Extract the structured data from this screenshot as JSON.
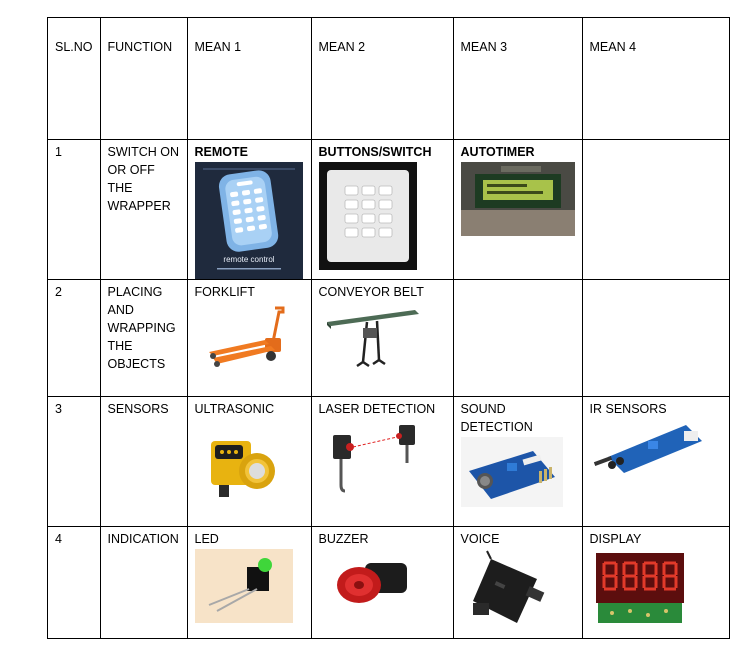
{
  "headers": [
    "SL.NO",
    "FUNCTION",
    "MEAN 1",
    "MEAN 2",
    "MEAN 3",
    "MEAN 4"
  ],
  "rows": [
    {
      "sl": "1",
      "function": "SWITCH ON OR OFF THE WRAPPER",
      "means": [
        {
          "label": "REMOTE",
          "bold": true,
          "icon": "remote-control-book-cover"
        },
        {
          "label": "BUTTONS/SWITCH",
          "bold": true,
          "icon": "keypad-switch-panel"
        },
        {
          "label": "AUTOTIMER",
          "bold": true,
          "icon": "lcd-timer-module"
        },
        {
          "label": ""
        }
      ]
    },
    {
      "sl": "2",
      "function": "PLACING AND WRAPPING THE OBJECTS",
      "means": [
        {
          "label": "FORKLIFT",
          "icon": "pallet-jack-forklift"
        },
        {
          "label": "CONVEYOR BELT",
          "icon": "conveyor-belt"
        },
        {
          "label": ""
        },
        {
          "label": ""
        }
      ]
    },
    {
      "sl": "3",
      "function": "SENSORS",
      "means": [
        {
          "label": "ULTRASONIC",
          "icon": "ultrasonic-sensor"
        },
        {
          "label": "LASER DETECTION",
          "icon": "laser-photoelectric-sensor"
        },
        {
          "label": "SOUND DETECTION",
          "icon": "sound-sensor-module"
        },
        {
          "label": "IR SENSORS",
          "icon": "ir-sensor-module"
        }
      ]
    },
    {
      "sl": "4",
      "function": "INDICATION",
      "means": [
        {
          "label": "LED",
          "icon": "green-led"
        },
        {
          "label": "BUZZER",
          "icon": "red-buzzer"
        },
        {
          "label": "VOICE",
          "icon": "voice-recorder-device"
        },
        {
          "label": "DISPLAY",
          "icon": "seven-segment-display"
        }
      ]
    }
  ],
  "image_text": {
    "remote_caption": "remote control"
  }
}
